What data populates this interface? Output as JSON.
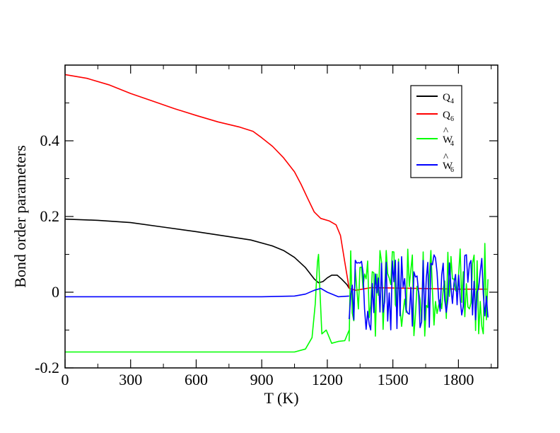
{
  "chart_data": {
    "type": "line",
    "xlabel": "T (K)",
    "ylabel": "Bond order parameters",
    "xlim": [
      0,
      1980
    ],
    "ylim": [
      -0.2,
      0.6
    ],
    "x_ticks": [
      0,
      300,
      600,
      900,
      1200,
      1500,
      1800
    ],
    "x_tick_labels": [
      "0",
      "300",
      "600",
      "900",
      "1200",
      "1500",
      "1800"
    ],
    "y_ticks": [
      -0.2,
      0,
      0.2,
      0.4
    ],
    "y_tick_labels": [
      "-0.2",
      "0",
      "0.2",
      "0.4"
    ],
    "grid": false,
    "legend_position": "top-right",
    "series": [
      {
        "name": "Q4",
        "legend_main": "Q",
        "legend_sub": "4",
        "legend_hat": "",
        "color": "#000000",
        "points": [
          [
            0,
            0.193
          ],
          [
            150,
            0.19
          ],
          [
            300,
            0.184
          ],
          [
            450,
            0.172
          ],
          [
            600,
            0.16
          ],
          [
            750,
            0.147
          ],
          [
            850,
            0.138
          ],
          [
            950,
            0.122
          ],
          [
            1000,
            0.11
          ],
          [
            1050,
            0.092
          ],
          [
            1100,
            0.065
          ],
          [
            1140,
            0.035
          ],
          [
            1160,
            0.025
          ],
          [
            1180,
            0.028
          ],
          [
            1200,
            0.038
          ],
          [
            1220,
            0.045
          ],
          [
            1245,
            0.045
          ],
          [
            1265,
            0.035
          ],
          [
            1290,
            0.02
          ],
          [
            1300,
            0.01
          ]
        ],
        "noise": []
      },
      {
        "name": "Q6",
        "legend_main": "Q",
        "legend_sub": "6",
        "legend_hat": "",
        "color": "#ff0000",
        "points": [
          [
            0,
            0.575
          ],
          [
            100,
            0.565
          ],
          [
            200,
            0.548
          ],
          [
            300,
            0.525
          ],
          [
            400,
            0.505
          ],
          [
            500,
            0.485
          ],
          [
            600,
            0.467
          ],
          [
            700,
            0.45
          ],
          [
            800,
            0.436
          ],
          [
            860,
            0.425
          ],
          [
            900,
            0.408
          ],
          [
            950,
            0.385
          ],
          [
            1000,
            0.355
          ],
          [
            1050,
            0.318
          ],
          [
            1080,
            0.285
          ],
          [
            1110,
            0.248
          ],
          [
            1140,
            0.212
          ],
          [
            1170,
            0.195
          ],
          [
            1210,
            0.188
          ],
          [
            1240,
            0.178
          ],
          [
            1260,
            0.15
          ],
          [
            1280,
            0.08
          ],
          [
            1300,
            0.01
          ],
          [
            1330,
            0.005
          ],
          [
            1400,
            0.012
          ],
          [
            1600,
            0.01
          ],
          [
            1800,
            0.008
          ],
          [
            1930,
            0.008
          ]
        ],
        "noise": []
      },
      {
        "name": "W4",
        "legend_main": "W",
        "legend_sub": "4",
        "legend_hat": "^",
        "color": "#00ff00",
        "points": [
          [
            0,
            -0.158
          ],
          [
            300,
            -0.158
          ],
          [
            600,
            -0.158
          ],
          [
            900,
            -0.158
          ],
          [
            1050,
            -0.158
          ],
          [
            1100,
            -0.15
          ],
          [
            1130,
            -0.12
          ],
          [
            1145,
            -0.03
          ],
          [
            1155,
            0.08
          ],
          [
            1160,
            0.1
          ],
          [
            1165,
            0.02
          ],
          [
            1175,
            -0.11
          ],
          [
            1195,
            -0.1
          ],
          [
            1220,
            -0.135
          ],
          [
            1250,
            -0.13
          ],
          [
            1280,
            -0.128
          ],
          [
            1300,
            -0.1
          ]
        ],
        "noise": [
          1300,
          1935,
          0.0,
          0.13,
          "#00ff00",
          90
        ]
      },
      {
        "name": "W6",
        "legend_main": "W",
        "legend_sub": "6",
        "legend_hat": "^",
        "color": "#0000ff",
        "points": [
          [
            0,
            -0.012
          ],
          [
            300,
            -0.012
          ],
          [
            600,
            -0.012
          ],
          [
            900,
            -0.012
          ],
          [
            1050,
            -0.01
          ],
          [
            1100,
            -0.005
          ],
          [
            1140,
            0.005
          ],
          [
            1170,
            0.01
          ],
          [
            1200,
            0.0
          ],
          [
            1250,
            -0.012
          ],
          [
            1300,
            -0.01
          ]
        ],
        "noise": [
          1300,
          1935,
          0.0,
          0.1,
          "#0000ff",
          90
        ]
      }
    ]
  }
}
